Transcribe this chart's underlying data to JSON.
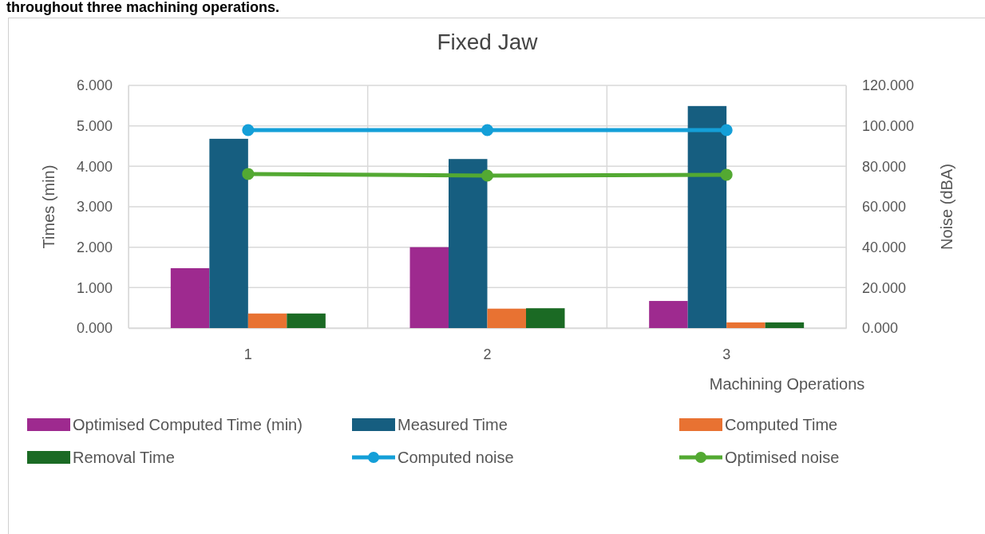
{
  "chart_data": {
    "type": "bar",
    "title": "Fixed Jaw",
    "xlabel": "Machining Operations",
    "ylabel": "Times (min)",
    "y2label": "Noise (dBA)",
    "annotations": [
      "throughout three machining operations."
    ],
    "categories": [
      "1",
      "2",
      "3"
    ],
    "series": [
      {
        "name": "Optimised Computed Time (min)",
        "color": "#9e2a8f",
        "values": [
          1.48,
          2.0,
          0.67
        ]
      },
      {
        "name": "Measured Time",
        "color": "#165e80",
        "values": [
          4.68,
          4.18,
          5.49
        ]
      },
      {
        "name": "Computed Time",
        "color": "#e87232",
        "values": [
          0.36,
          0.48,
          0.14
        ]
      },
      {
        "name": "Removal Time",
        "color": "#1b6a24",
        "values": [
          0.36,
          0.49,
          0.14
        ]
      },
      {
        "name": "Computed noise",
        "color": "#149fd8",
        "type": "line",
        "axis": "y2",
        "values": [
          97.9,
          97.9,
          97.9
        ]
      },
      {
        "name": "Optimised noise",
        "color": "#53a932",
        "type": "line",
        "axis": "y2",
        "values": [
          76.2,
          75.4,
          75.8
        ]
      }
    ],
    "ylim": [
      0,
      6
    ],
    "yticks": [
      {
        "value": 0,
        "label": "0.000"
      },
      {
        "value": 1,
        "label": "1.000"
      },
      {
        "value": 2,
        "label": "2.000"
      },
      {
        "value": 3,
        "label": "3.000"
      },
      {
        "value": 4,
        "label": "4.000"
      },
      {
        "value": 5,
        "label": "5.000"
      },
      {
        "value": 6,
        "label": "6.000"
      }
    ],
    "y2lim": [
      0,
      120
    ],
    "y2ticks": [
      {
        "value": 0,
        "label": "0.000"
      },
      {
        "value": 20,
        "label": "20.000"
      },
      {
        "value": 40,
        "label": "40.000"
      },
      {
        "value": 60,
        "label": "60.000"
      },
      {
        "value": 80,
        "label": "80.000"
      },
      {
        "value": 100,
        "label": "100.000"
      },
      {
        "value": 120,
        "label": "120.000"
      }
    ],
    "grid": true,
    "legend": "bottom",
    "marker": "circle",
    "line_style": "solid"
  }
}
